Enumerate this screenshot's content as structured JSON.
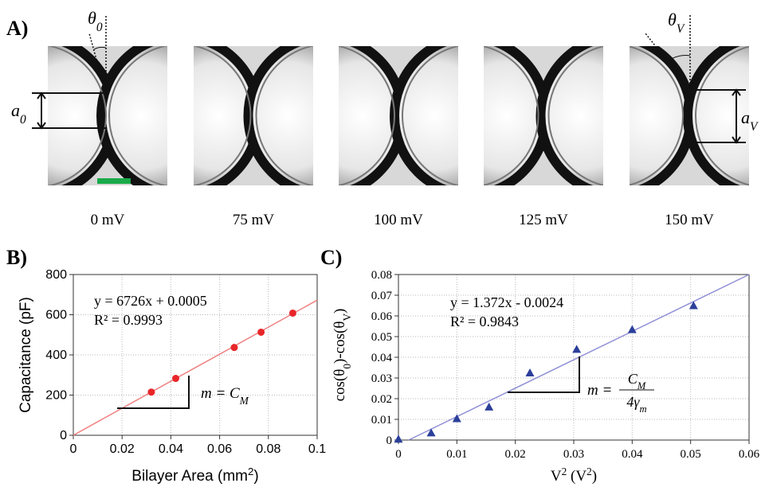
{
  "panel_a": {
    "label": "A)",
    "images": [
      "0 mV",
      "75 mV",
      "100 mV",
      "125 mV",
      "150 mV"
    ],
    "angle_left": [
      {
        "t": "θ"
      },
      {
        "sub": "0"
      }
    ],
    "height_left": [
      {
        "t": "a"
      },
      {
        "sub": "0"
      }
    ],
    "angle_right": [
      {
        "t": "θ"
      },
      {
        "sub": "V"
      }
    ],
    "height_right": [
      {
        "t": "a"
      },
      {
        "sub": "V"
      }
    ]
  },
  "chart_data": [
    {
      "type": "scatter",
      "panel_label": "B)",
      "x_label": [
        {
          "t": "Bilayer Area (mm"
        },
        {
          "sup": "2"
        },
        {
          "t": ")"
        }
      ],
      "y_label": [
        {
          "t": "Capacitance (pF)"
        }
      ],
      "xlim": [
        0,
        0.1
      ],
      "xticks": [
        0,
        0.02,
        0.04,
        0.06,
        0.08,
        0.1
      ],
      "ylim": [
        0,
        800
      ],
      "yticks": [
        0,
        200,
        400,
        600,
        800
      ],
      "grid": true,
      "series": [
        {
          "marker": "circle",
          "color": "#e8262a",
          "x": [
            0.032,
            0.042,
            0.066,
            0.077,
            0.09
          ],
          "values": [
            215,
            283,
            437,
            513,
            608
          ]
        }
      ],
      "trend": {
        "color": "#f08080",
        "x": [
          0,
          0.1
        ],
        "values": [
          0,
          672.6
        ]
      },
      "equation": "y = 6726x + 0.0005",
      "r_squared": "R² = 0.9993",
      "slope_label": [
        {
          "t": "m = "
        },
        {
          "t": "C"
        },
        {
          "sub": "M"
        }
      ]
    },
    {
      "type": "scatter",
      "panel_label": "C)",
      "x_label": [
        {
          "t": "V"
        },
        {
          "sup": "2"
        },
        {
          "t": " (V"
        },
        {
          "sup": "2"
        },
        {
          "t": ")"
        }
      ],
      "y_label": [
        {
          "t": "cos(θ"
        },
        {
          "sub": "0"
        },
        {
          "t": ")-cos(θ"
        },
        {
          "sub": "V"
        },
        {
          "t": ")"
        }
      ],
      "xlim": [
        0,
        0.06
      ],
      "xticks": [
        0,
        0.01,
        0.02,
        0.03,
        0.04,
        0.05,
        0.06
      ],
      "ylim": [
        0,
        0.08
      ],
      "yticks": [
        0,
        0.01,
        0.02,
        0.03,
        0.04,
        0.05,
        0.06,
        0.07,
        0.08
      ],
      "grid": true,
      "series": [
        {
          "marker": "triangle",
          "color": "#2b3f9a",
          "x": [
            0,
            0.0056,
            0.01,
            0.0155,
            0.0225,
            0.0305,
            0.04,
            0.0505
          ],
          "values": [
            0.0003,
            0.0033,
            0.0102,
            0.0158,
            0.0323,
            0.0437,
            0.0532,
            0.0648
          ]
        }
      ],
      "trend": {
        "color": "#8f8fd6",
        "x": [
          0.00175,
          0.06
        ],
        "values": [
          0,
          0.08
        ]
      },
      "equation": "y = 1.372x - 0.0024",
      "r_squared": "R² = 0.9843",
      "slope_label": [
        {
          "t": "m = "
        }
      ],
      "slope_numerator": [
        {
          "t": "C"
        },
        {
          "sub": "M"
        }
      ],
      "slope_denominator": [
        {
          "t": "4γ"
        },
        {
          "sub": "m"
        }
      ]
    }
  ]
}
